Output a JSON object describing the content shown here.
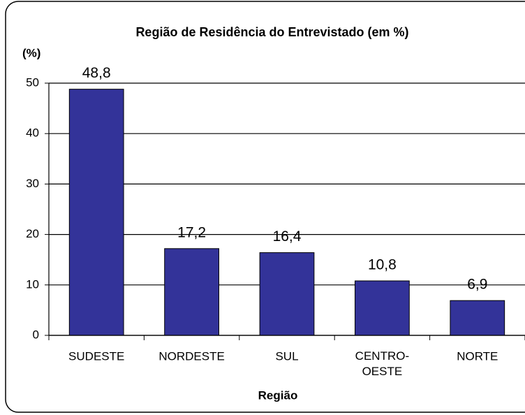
{
  "chart_data": {
    "type": "bar",
    "title": "Região de Residência do Entrevistado  (em %)",
    "y_axis_label": "(%)",
    "x_axis_label": "Região",
    "categories": [
      "SUDESTE",
      "NORDESTE",
      "SUL",
      "CENTRO-OESTE",
      "NORTE"
    ],
    "values": [
      48.8,
      17.2,
      16.4,
      10.8,
      6.9
    ],
    "value_labels": [
      "48,8",
      "17,2",
      "16,4",
      "10,8",
      "6,9"
    ],
    "color": "#333399",
    "ylim": [
      0,
      50
    ],
    "yticks": [
      0,
      10,
      20,
      30,
      40,
      50
    ],
    "grid": true
  }
}
